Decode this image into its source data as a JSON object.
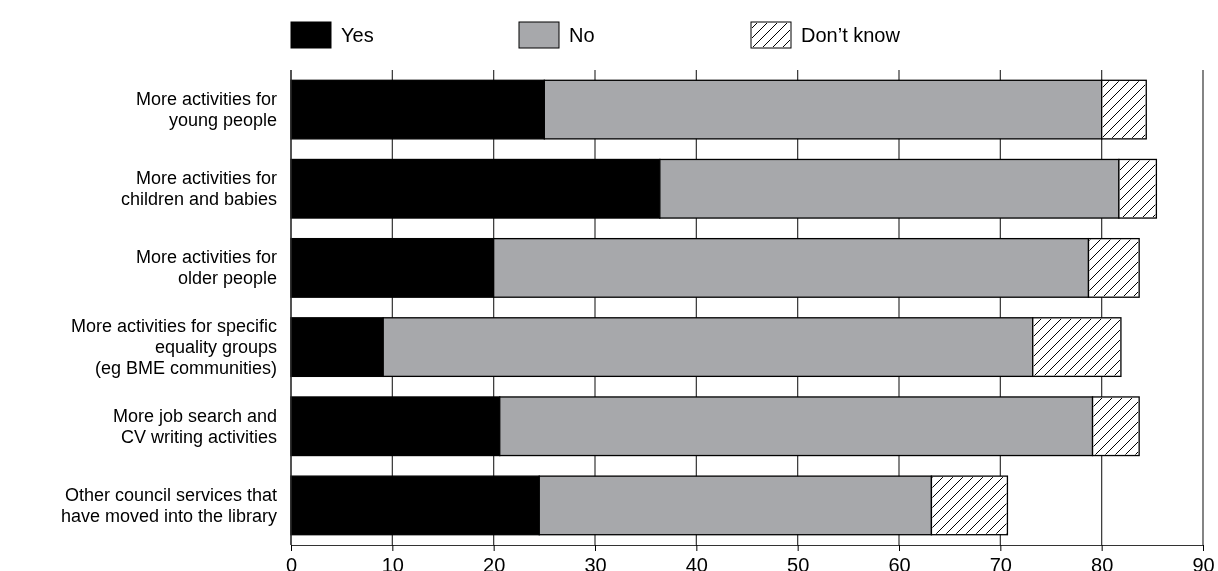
{
  "chart_data": {
    "type": "bar",
    "orientation": "horizontal",
    "stacked": true,
    "categories": [
      "More activities for\nyoung people",
      "More activities for\nchildren and babies",
      "More activities for\nolder people",
      "More activities for specific\nequality groups\n(eg BME communities)",
      "More job search and\nCV writing activities",
      "Other council services that\nhave moved into the library"
    ],
    "series": [
      {
        "name": "Yes",
        "color": "#000000",
        "values": [
          25.0,
          36.4,
          20.0,
          9.1,
          20.6,
          24.5
        ]
      },
      {
        "name": "No",
        "color": "#a7a8ab",
        "values": [
          55.0,
          45.3,
          58.7,
          64.1,
          58.5,
          38.7
        ]
      },
      {
        "name": "Don’t know",
        "color": "#ffffff",
        "values": [
          4.4,
          3.7,
          5.0,
          8.7,
          4.6,
          7.5
        ]
      }
    ],
    "xlim": [
      0,
      90
    ],
    "xticks": [
      0,
      10,
      20,
      30,
      40,
      50,
      60,
      70,
      80,
      90
    ],
    "grid": "x",
    "legend": "top"
  }
}
